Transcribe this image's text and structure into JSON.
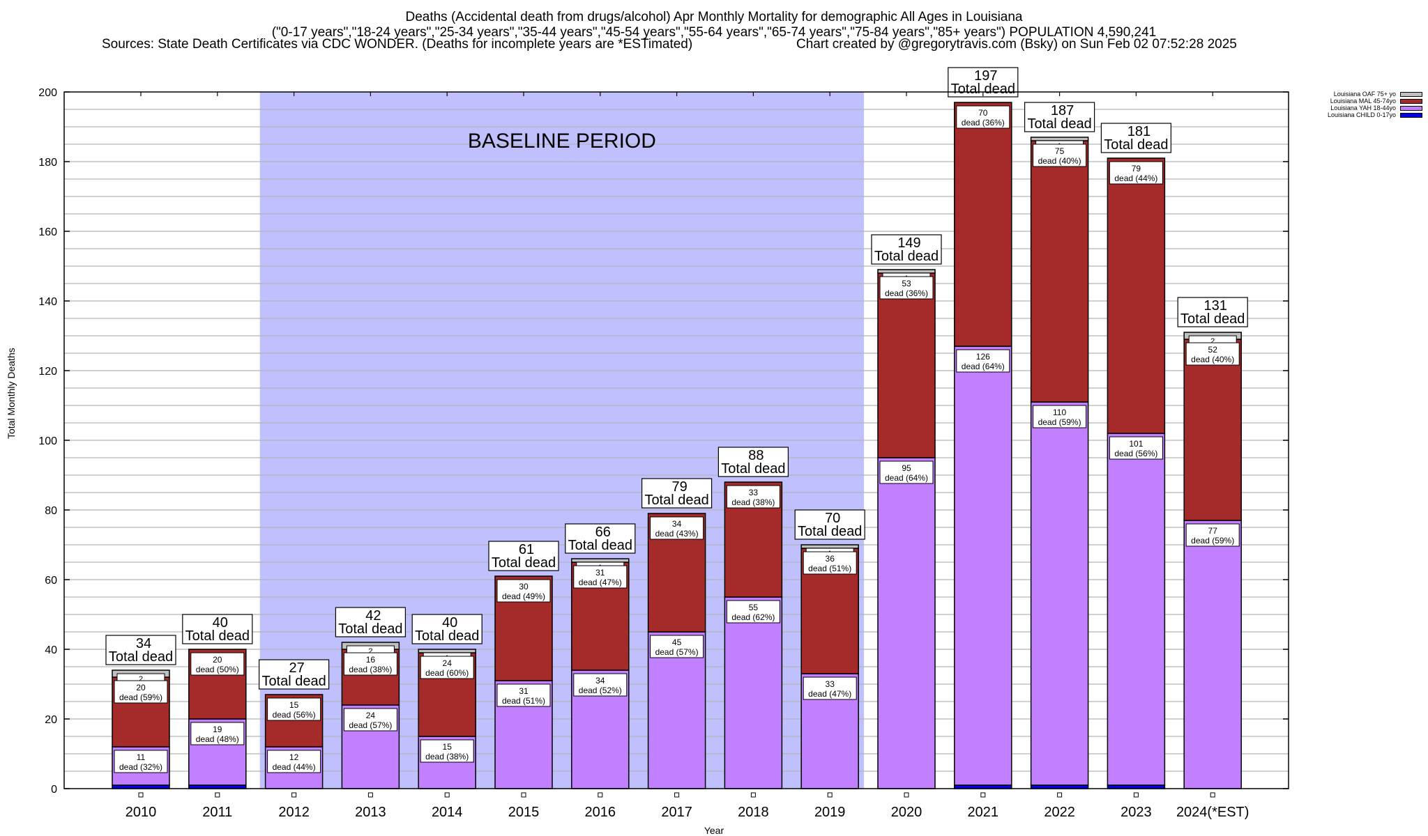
{
  "header": {
    "title": "Deaths (Accidental death from drugs/alcohol) Apr Monthly Mortality for demographic All Ages in Louisiana",
    "subtitle": "(\"0-17 years\",\"18-24 years\",\"25-34 years\",\"35-44 years\",\"45-54 years\",\"55-64 years\",\"65-74 years\",\"75-84 years\",\"85+ years\") POPULATION 4,590,241",
    "sources": "Sources: State Death Certificates via CDC WONDER. (Deaths for incomplete years are *ESTimated)",
    "credit": "Chart created by @gregorytravis.com (Bsky) on Sun Feb 02 07:52:28 2025"
  },
  "chart_data": {
    "type": "bar",
    "stacked": true,
    "title": "Deaths (Accidental death from drugs/alcohol) Apr Monthly Mortality for demographic All Ages in Louisiana",
    "xlabel": "Year",
    "ylabel": "Total Monthly Deaths",
    "ylim": [
      0,
      200
    ],
    "yticks": [
      0,
      20,
      40,
      60,
      80,
      100,
      120,
      140,
      160,
      180,
      200
    ],
    "minor_grid_step": 5,
    "grid": true,
    "legend_position": "top-right",
    "categories": [
      "2010",
      "2011",
      "2012",
      "2013",
      "2014",
      "2015",
      "2016",
      "2017",
      "2018",
      "2019",
      "2020",
      "2021",
      "2022",
      "2023",
      "2024(*EST)"
    ],
    "series": [
      {
        "name": "Louisiana CHILD 0-17yo",
        "color": "#0000ee",
        "values": [
          1,
          1,
          0,
          0,
          0,
          0,
          0,
          0,
          0,
          0,
          0,
          1,
          1,
          1,
          0
        ]
      },
      {
        "name": "Louisiana YAH 18-44yo",
        "color": "#c080ff",
        "values": [
          11,
          19,
          12,
          24,
          15,
          31,
          34,
          45,
          55,
          33,
          95,
          126,
          110,
          101,
          77
        ],
        "labels": [
          "11\ndead (32%)",
          "19\ndead (48%)",
          "12\ndead (44%)",
          "24\ndead (57%)",
          "15\ndead (38%)",
          "31\ndead (51%)",
          "34\ndead (52%)",
          "45\ndead (57%)",
          "55\ndead (62%)",
          "33\ndead (47%)",
          "95\ndead (64%)",
          "126\ndead (64%)",
          "110\ndead (59%)",
          "101\ndead (56%)",
          "77\ndead (59%)"
        ]
      },
      {
        "name": "Louisiana MAL 45-74yo",
        "color": "#a52a2a",
        "values": [
          20,
          20,
          15,
          16,
          24,
          30,
          31,
          34,
          33,
          36,
          53,
          70,
          75,
          79,
          52
        ],
        "labels": [
          "20\ndead (59%)",
          "20\ndead (50%)",
          "15\ndead (56%)",
          "16\ndead (38%)",
          "24\ndead (60%)",
          "30\ndead (49%)",
          "31\ndead (47%)",
          "34\ndead (43%)",
          "33\ndead (38%)",
          "36\ndead (51%)",
          "53\ndead (36%)",
          "70\ndead (36%)",
          "75\ndead (40%)",
          "79\ndead (44%)",
          "52\ndead (40%)"
        ]
      },
      {
        "name": "Louisiana OAF 75+ yo",
        "color": "#c0c0c0",
        "values": [
          2,
          0,
          0,
          2,
          1,
          0,
          1,
          0,
          0,
          1,
          1,
          0,
          1,
          0,
          2
        ],
        "labels": [
          "2",
          "",
          "",
          "2",
          "1",
          "",
          "1",
          "",
          "",
          "1",
          "1",
          "",
          "1",
          "",
          "2"
        ]
      }
    ],
    "totals": [
      34,
      40,
      27,
      42,
      40,
      61,
      66,
      79,
      88,
      70,
      149,
      197,
      187,
      181,
      131
    ],
    "total_label_suffix": "Total dead",
    "annotations": [
      {
        "text": "BASELINE PERIOD",
        "shaded_range": [
          "2012",
          "2019"
        ],
        "color": "#c0c0ff"
      }
    ]
  }
}
